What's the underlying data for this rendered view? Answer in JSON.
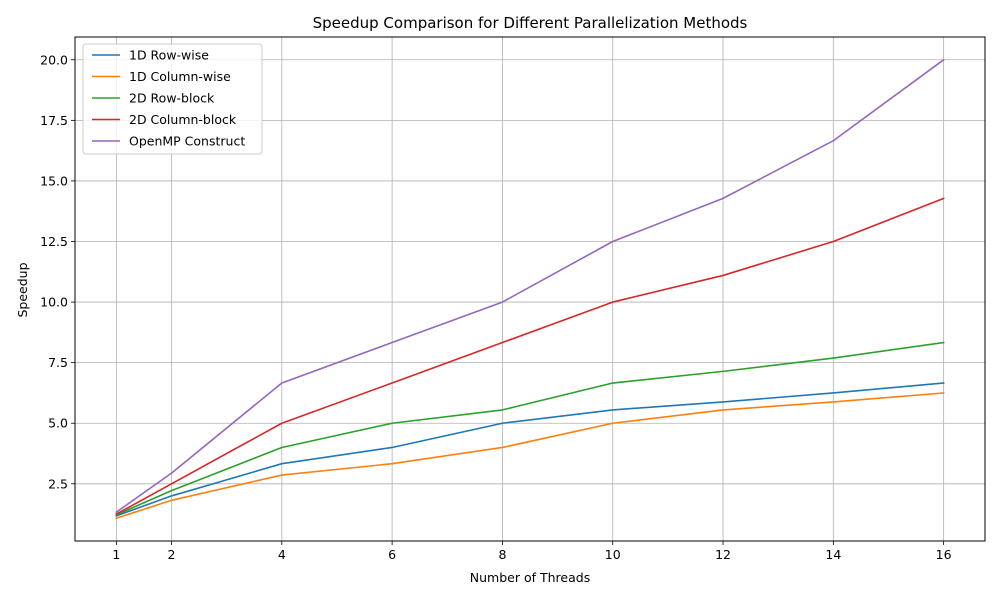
{
  "chart_data": {
    "type": "line",
    "title": "Speedup Comparison for Different Parallelization Methods",
    "xlabel": "Number of Threads",
    "ylabel": "Speedup",
    "x": [
      1,
      2,
      4,
      6,
      8,
      10,
      12,
      14,
      16
    ],
    "xticks": [
      1,
      2,
      4,
      6,
      8,
      10,
      12,
      14,
      16
    ],
    "xtick_labels": [
      "1",
      "2",
      "4",
      "6",
      "8",
      "10",
      "12",
      "14",
      "16"
    ],
    "xlim": [
      0.25,
      16.75
    ],
    "yticks": [
      2.5,
      5.0,
      7.5,
      10.0,
      12.5,
      15.0,
      17.5,
      20.0
    ],
    "ytick_labels": [
      "2.5",
      "5.0",
      "7.5",
      "10.0",
      "12.5",
      "15.0",
      "17.5",
      "20.0"
    ],
    "ylim": [
      0.14,
      20.94
    ],
    "grid": true,
    "legend_position": "upper left",
    "series": [
      {
        "name": "1D Row-wise",
        "color": "#1f77b4",
        "values": [
          1.18,
          2.0,
          3.33,
          4.0,
          5.0,
          5.55,
          5.88,
          6.25,
          6.66
        ]
      },
      {
        "name": "1D Column-wise",
        "color": "#ff7f0e",
        "values": [
          1.08,
          1.82,
          2.86,
          3.33,
          4.0,
          5.0,
          5.55,
          5.88,
          6.25
        ]
      },
      {
        "name": "2D Row-block",
        "color": "#2ca02c",
        "values": [
          1.22,
          2.22,
          4.0,
          5.0,
          5.55,
          6.66,
          7.14,
          7.69,
          8.33
        ]
      },
      {
        "name": "2D Column-block",
        "color": "#d62728",
        "values": [
          1.25,
          2.5,
          5.0,
          6.66,
          8.33,
          10.0,
          11.1,
          12.5,
          14.28
        ]
      },
      {
        "name": "OpenMP Construct",
        "color": "#9467bd",
        "values": [
          1.33,
          2.94,
          6.66,
          8.33,
          10.0,
          12.5,
          14.28,
          16.66,
          20.0
        ]
      }
    ]
  }
}
